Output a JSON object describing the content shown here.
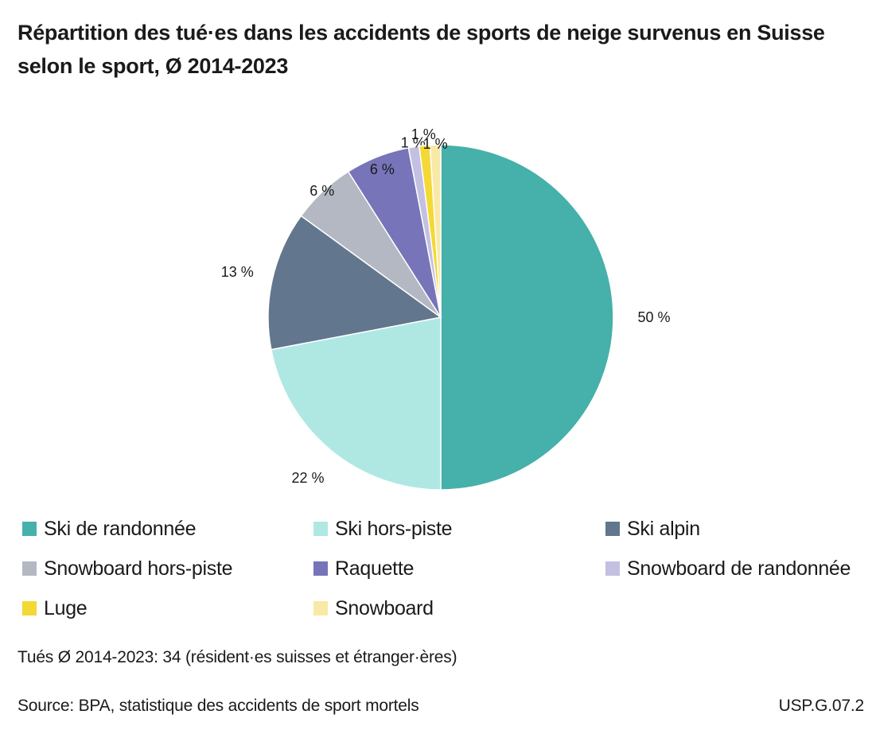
{
  "chart_data": {
    "type": "pie",
    "title_line1": "Répartition des tué·es dans les accidents de sports de neige survenus en Suisse",
    "title_line2": "selon le sport, Ø 2014-2023",
    "slices": [
      {
        "name": "Ski de randonnée",
        "value": 50,
        "label": "50 %",
        "color": "#46b0aa"
      },
      {
        "name": "Ski hors-piste",
        "value": 22,
        "label": "22 %",
        "color": "#afe8e3"
      },
      {
        "name": "Ski alpin",
        "value": 13,
        "label": "13 %",
        "color": "#62768d"
      },
      {
        "name": "Snowboard hors-piste",
        "value": 6,
        "label": "6 %",
        "color": "#b4b8c2"
      },
      {
        "name": "Raquette",
        "value": 6,
        "label": "6 %",
        "color": "#7774b9"
      },
      {
        "name": "Snowboard de randonnée",
        "value": 1,
        "label": "1 %",
        "color": "#c3c0e2"
      },
      {
        "name": "Luge",
        "value": 1,
        "label": "1 %",
        "color": "#f4d835"
      },
      {
        "name": "Snowboard",
        "value": 1,
        "label": "1 %",
        "color": "#f9e9a6"
      }
    ],
    "legend_placement": "bottom"
  },
  "footer": {
    "note": "Tués Ø 2014-2023: 34 (résident·es suisses et étranger·ères)",
    "source": "Source: BPA, statistique des accidents de sport mortels",
    "code": "USP.G.07.2"
  }
}
